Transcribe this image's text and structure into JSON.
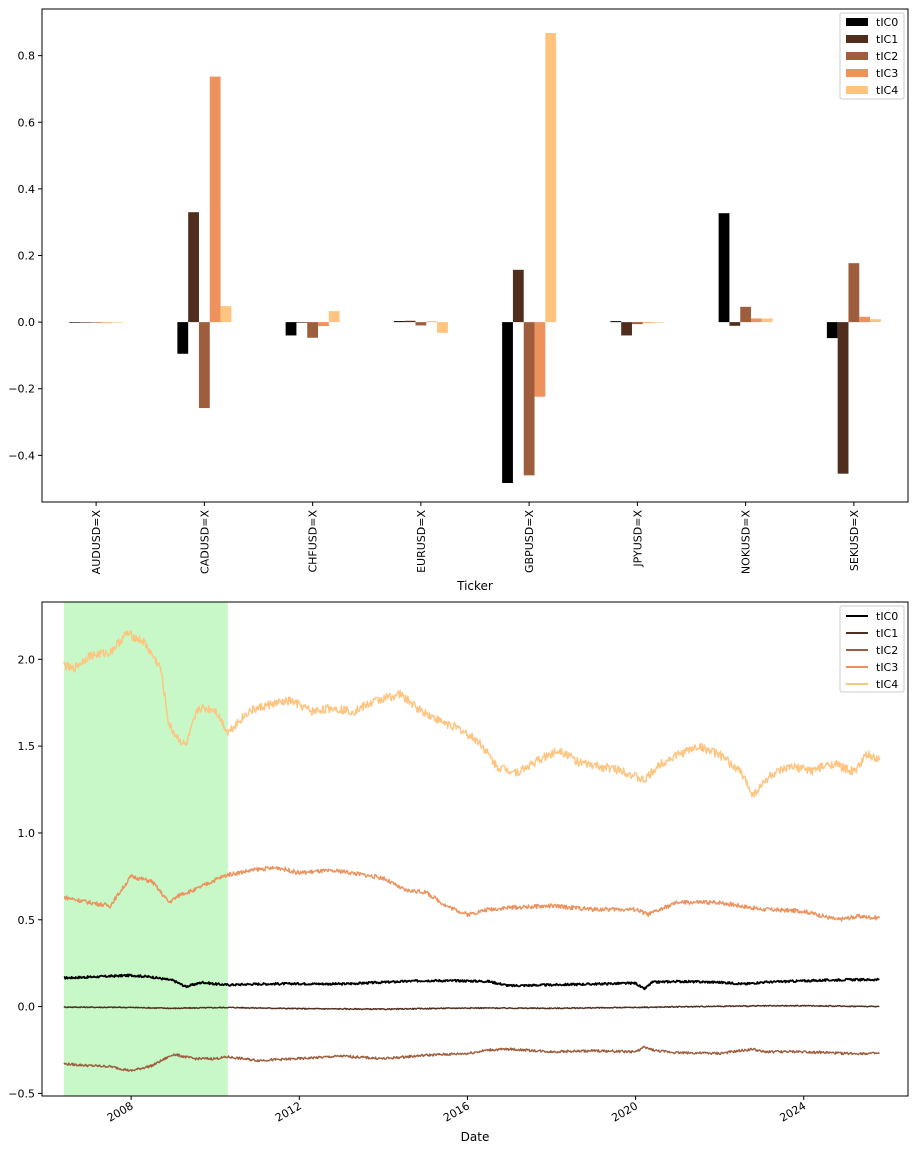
{
  "chart_data": [
    {
      "type": "bar",
      "title": "",
      "xlabel": "Ticker",
      "ylabel": "",
      "ylim": [
        -0.54,
        0.94
      ],
      "yticks": [
        -0.4,
        -0.2,
        0.0,
        0.2,
        0.4,
        0.6,
        0.8
      ],
      "ytick_labels": [
        "−0.4",
        "−0.2",
        "0.0",
        "0.2",
        "0.4",
        "0.6",
        "0.8"
      ],
      "categories": [
        "AUDUSD=X",
        "CADUSD=X",
        "CHFUSD=X",
        "EURUSD=X",
        "GBPUSD=X",
        "JPYUSD=X",
        "NOKUSD=X",
        "SEKUSD=X"
      ],
      "legend_position": "top-right",
      "series": [
        {
          "name": "tIC0",
          "color": "#000000",
          "values": [
            0,
            -0.095,
            -0.04,
            0.003,
            -0.483,
            0.003,
            0.327,
            -0.048
          ]
        },
        {
          "name": "tIC1",
          "color": "#4f2e1e",
          "values": [
            0,
            0.33,
            -0.002,
            0.004,
            0.157,
            -0.04,
            -0.011,
            -0.455
          ]
        },
        {
          "name": "tIC2",
          "color": "#9e5e3e",
          "values": [
            0,
            -0.258,
            -0.047,
            -0.01,
            -0.46,
            -0.006,
            0.046,
            0.177
          ]
        },
        {
          "name": "tIC3",
          "color": "#ed925d",
          "values": [
            0,
            0.737,
            -0.012,
            0.002,
            -0.224,
            -0.002,
            0.011,
            0.016
          ]
        },
        {
          "name": "tIC4",
          "color": "#ffc47f",
          "values": [
            0,
            0.048,
            0.033,
            -0.032,
            0.868,
            0.0,
            0.011,
            0.009
          ]
        }
      ]
    },
    {
      "type": "line",
      "title": "",
      "xlabel": "Date",
      "ylabel": "",
      "xlim": [
        2005.88,
        2026.48
      ],
      "ylim": [
        -0.515,
        2.33
      ],
      "xticks": [
        2008,
        2012,
        2016,
        2020,
        2024
      ],
      "xtick_labels": [
        "2008",
        "2012",
        "2016",
        "2020",
        "2024"
      ],
      "yticks": [
        -0.5,
        0.0,
        0.5,
        1.0,
        1.5,
        2.0
      ],
      "ytick_labels": [
        "−0.5",
        "0.0",
        "0.5",
        "1.0",
        "1.5",
        "2.0"
      ],
      "highlight_span": {
        "from": 2006.4,
        "to": 2010.3,
        "color": "#c8f8c8"
      },
      "legend_position": "top-right",
      "series": [
        {
          "name": "tIC0",
          "color": "#000000",
          "x": [
            2006.4,
            2007.0,
            2007.5,
            2008.0,
            2008.5,
            2009.0,
            2009.3,
            2009.7,
            2010.0,
            2010.3,
            2011.0,
            2012.0,
            2013.0,
            2014.0,
            2015.0,
            2016.0,
            2016.5,
            2017.0,
            2018.0,
            2019.0,
            2020.0,
            2020.2,
            2020.4,
            2021.0,
            2022.0,
            2022.6,
            2023.0,
            2024.0,
            2025.0,
            2025.8
          ],
          "values": [
            0.165,
            0.17,
            0.175,
            0.18,
            0.17,
            0.15,
            0.115,
            0.14,
            0.13,
            0.125,
            0.13,
            0.132,
            0.13,
            0.14,
            0.15,
            0.148,
            0.145,
            0.12,
            0.125,
            0.13,
            0.135,
            0.1,
            0.14,
            0.145,
            0.14,
            0.13,
            0.14,
            0.148,
            0.155,
            0.155
          ]
        },
        {
          "name": "tIC1",
          "color": "#4f2e1e",
          "x": [
            2006.4,
            2008.0,
            2009.0,
            2010.3,
            2012.0,
            2014.0,
            2016.0,
            2018.0,
            2020.0,
            2022.0,
            2024.0,
            2025.8
          ],
          "values": [
            -0.003,
            -0.005,
            -0.01,
            -0.005,
            -0.012,
            -0.015,
            -0.008,
            -0.01,
            -0.005,
            0.002,
            0.005,
            0.0
          ]
        },
        {
          "name": "tIC2",
          "color": "#9e5e3e",
          "x": [
            2006.4,
            2007.0,
            2007.5,
            2008.0,
            2008.5,
            2009.0,
            2009.5,
            2010.0,
            2010.3,
            2011.0,
            2012.0,
            2013.0,
            2014.0,
            2015.0,
            2016.0,
            2016.5,
            2017.0,
            2018.0,
            2019.0,
            2020.0,
            2020.2,
            2020.5,
            2021.0,
            2022.0,
            2022.8,
            2023.0,
            2024.0,
            2025.0,
            2025.8
          ],
          "values": [
            -0.33,
            -0.34,
            -0.345,
            -0.37,
            -0.34,
            -0.275,
            -0.3,
            -0.3,
            -0.29,
            -0.31,
            -0.3,
            -0.285,
            -0.3,
            -0.28,
            -0.27,
            -0.25,
            -0.245,
            -0.26,
            -0.255,
            -0.26,
            -0.235,
            -0.255,
            -0.265,
            -0.27,
            -0.245,
            -0.26,
            -0.26,
            -0.27,
            -0.27
          ]
        },
        {
          "name": "tIC3",
          "color": "#ed925d",
          "x": [
            2006.4,
            2007.0,
            2007.5,
            2008.0,
            2008.5,
            2008.9,
            2009.2,
            2009.5,
            2010.0,
            2010.3,
            2011.0,
            2011.5,
            2012.0,
            2012.5,
            2013.0,
            2014.0,
            2014.5,
            2015.0,
            2015.5,
            2016.0,
            2016.5,
            2017.0,
            2018.0,
            2019.0,
            2020.0,
            2020.3,
            2021.0,
            2022.0,
            2023.0,
            2024.0,
            2024.8,
            2025.3,
            2025.8
          ],
          "values": [
            0.63,
            0.6,
            0.58,
            0.75,
            0.72,
            0.6,
            0.65,
            0.67,
            0.73,
            0.76,
            0.79,
            0.8,
            0.77,
            0.78,
            0.78,
            0.74,
            0.67,
            0.66,
            0.58,
            0.53,
            0.56,
            0.57,
            0.58,
            0.56,
            0.56,
            0.53,
            0.6,
            0.6,
            0.56,
            0.55,
            0.5,
            0.52,
            0.51
          ]
        },
        {
          "name": "tIC4",
          "color": "#ffc47f",
          "x": [
            2006.4,
            2006.6,
            2007.0,
            2007.5,
            2007.9,
            2008.3,
            2008.7,
            2008.9,
            2009.1,
            2009.3,
            2009.6,
            2010.0,
            2010.3,
            2010.8,
            2011.3,
            2011.8,
            2012.3,
            2012.8,
            2013.3,
            2013.8,
            2014.4,
            2014.8,
            2015.3,
            2015.8,
            2016.3,
            2016.7,
            2017.2,
            2017.7,
            2018.2,
            2018.7,
            2019.2,
            2019.7,
            2020.2,
            2020.6,
            2021.0,
            2021.5,
            2022.0,
            2022.5,
            2022.8,
            2023.2,
            2023.7,
            2024.2,
            2024.7,
            2025.2,
            2025.5,
            2025.8
          ],
          "values": [
            1.97,
            1.94,
            2.02,
            2.04,
            2.15,
            2.1,
            1.95,
            1.62,
            1.55,
            1.5,
            1.72,
            1.71,
            1.58,
            1.7,
            1.74,
            1.76,
            1.7,
            1.72,
            1.7,
            1.76,
            1.8,
            1.72,
            1.65,
            1.6,
            1.52,
            1.38,
            1.35,
            1.42,
            1.48,
            1.4,
            1.38,
            1.36,
            1.3,
            1.4,
            1.45,
            1.5,
            1.45,
            1.35,
            1.22,
            1.33,
            1.38,
            1.36,
            1.4,
            1.35,
            1.45,
            1.42
          ]
        }
      ]
    }
  ]
}
